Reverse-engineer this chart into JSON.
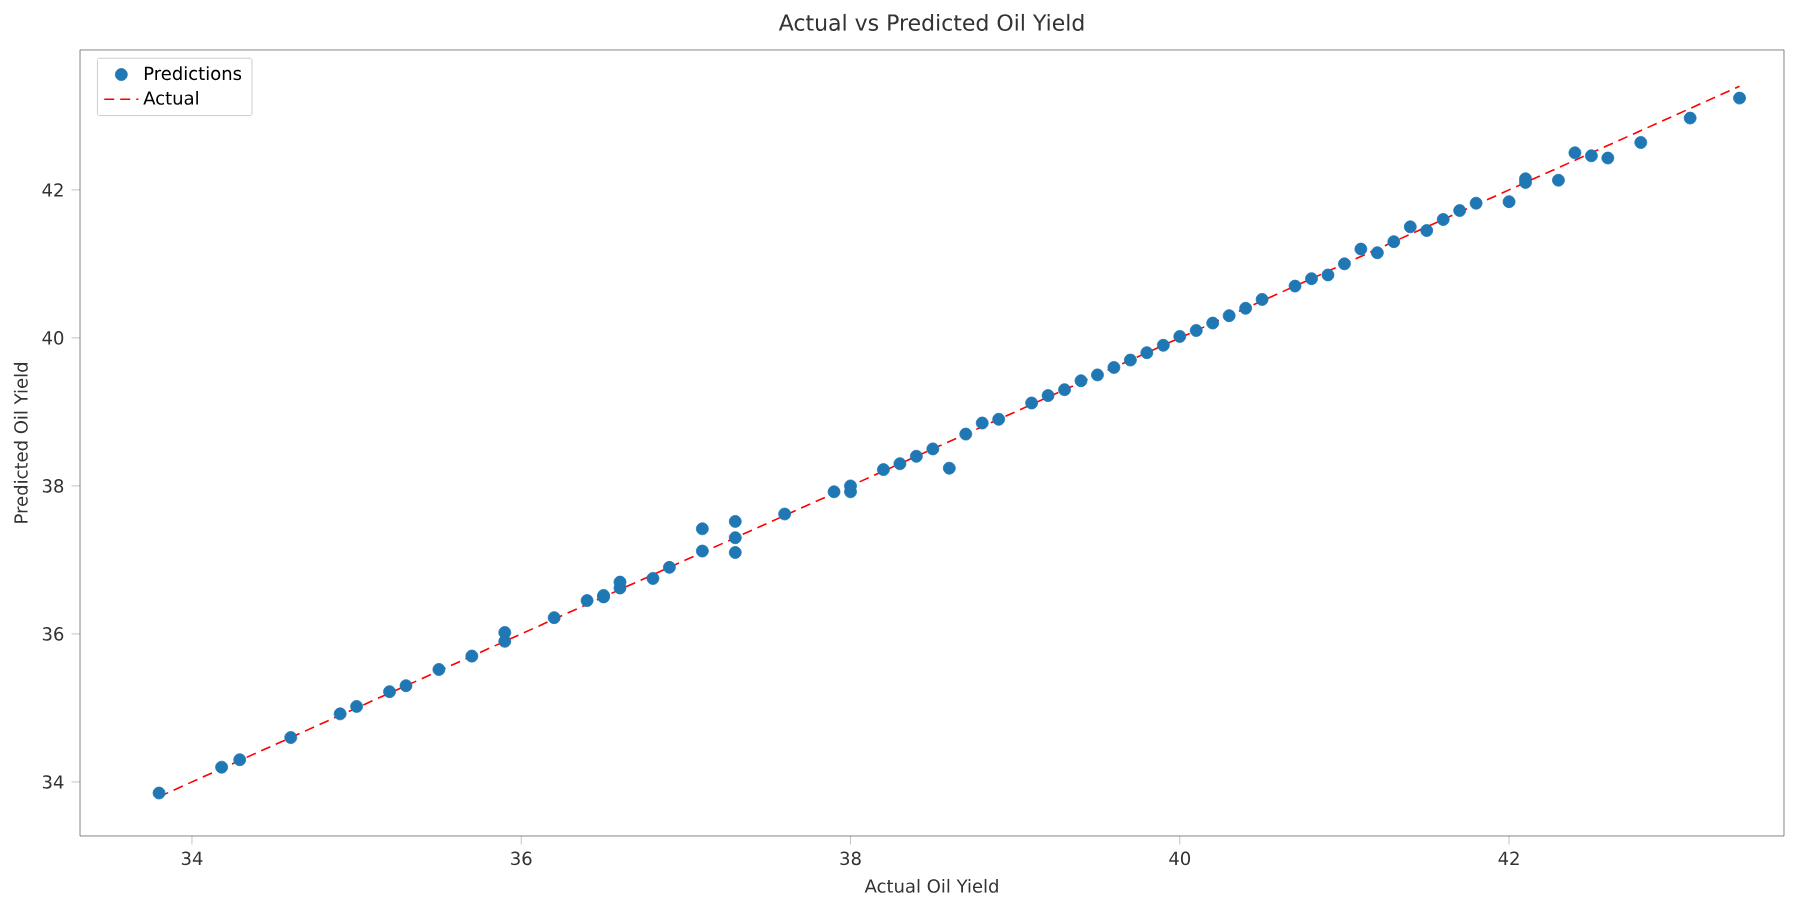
{
  "chart_data": {
    "type": "scatter",
    "title": "Actual vs Predicted Oil Yield",
    "xlabel": "Actual Oil Yield",
    "ylabel": "Predicted Oil Yield",
    "xlim": [
      33.32,
      43.67
    ],
    "ylim": [
      33.27,
      43.89
    ],
    "xticks": [
      34,
      36,
      38,
      40,
      42
    ],
    "yticks": [
      34,
      36,
      38,
      40,
      42
    ],
    "grid": false,
    "legend": "top left",
    "series": [
      {
        "name": "Predictions",
        "color": "#1f77b4",
        "marker": "circle",
        "x": [
          33.8,
          34.18,
          34.29,
          34.6,
          34.9,
          35.0,
          35.2,
          35.3,
          35.5,
          35.7,
          35.9,
          35.9,
          36.2,
          36.4,
          36.5,
          36.5,
          36.6,
          36.6,
          36.8,
          36.9,
          37.1,
          37.1,
          37.3,
          37.3,
          37.3,
          37.6,
          37.9,
          38.0,
          38.0,
          38.2,
          38.3,
          38.4,
          38.5,
          38.6,
          38.7,
          38.8,
          38.9,
          39.1,
          39.2,
          39.3,
          39.4,
          39.5,
          39.6,
          39.7,
          39.8,
          39.9,
          40.0,
          40.1,
          40.2,
          40.3,
          40.4,
          40.5,
          40.7,
          40.8,
          40.9,
          41.0,
          41.1,
          41.2,
          41.3,
          41.4,
          41.5,
          41.6,
          41.7,
          41.8,
          42.0,
          42.1,
          42.1,
          42.3,
          42.4,
          42.5,
          42.6,
          42.8,
          43.1,
          43.4
        ],
        "values": [
          33.85,
          34.2,
          34.3,
          34.6,
          34.92,
          35.02,
          35.22,
          35.3,
          35.52,
          35.7,
          35.9,
          36.02,
          36.22,
          36.45,
          36.5,
          36.52,
          36.62,
          36.7,
          36.75,
          36.9,
          37.12,
          37.42,
          37.1,
          37.3,
          37.52,
          37.62,
          37.92,
          37.92,
          38.0,
          38.22,
          38.3,
          38.4,
          38.5,
          38.24,
          38.7,
          38.85,
          38.9,
          39.12,
          39.22,
          39.3,
          39.42,
          39.5,
          39.6,
          39.7,
          39.8,
          39.9,
          40.02,
          40.1,
          40.2,
          40.3,
          40.4,
          40.52,
          40.7,
          40.8,
          40.85,
          41.0,
          41.2,
          41.15,
          41.3,
          41.5,
          41.45,
          41.6,
          41.72,
          41.82,
          41.84,
          42.1,
          42.15,
          42.13,
          42.5,
          42.46,
          42.43,
          42.64,
          42.97,
          43.24
        ]
      },
      {
        "name": "Actual",
        "type": "line",
        "color": "#ff0000",
        "line_style": "dashed",
        "marker": "none",
        "x": [
          33.8,
          43.4
        ],
        "values": [
          33.8,
          43.4
        ]
      }
    ]
  }
}
